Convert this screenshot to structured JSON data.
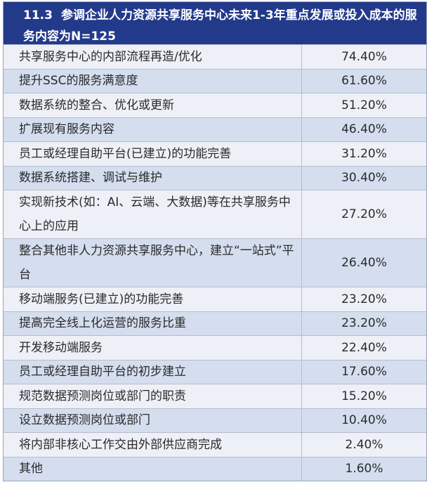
{
  "title": {
    "number": "11.3",
    "text": "参调企业人力资源共享服务中心未来1-3年重点发展或投入成本的服务内容为N=125"
  },
  "colors": {
    "header": "#233a8b",
    "row_light": "#eef0f8",
    "row_dark": "#d4deef"
  },
  "rows": [
    {
      "label": "共享服务中心的内部流程再造/优化",
      "value": "74.40%"
    },
    {
      "label": "提升SSC的服务满意度",
      "value": "61.60%"
    },
    {
      "label": "数据系统的整合、优化或更新",
      "value": "51.20%"
    },
    {
      "label": "扩展现有服务内容",
      "value": "46.40%"
    },
    {
      "label": "员工或经理自助平台(已建立)的功能完善",
      "value": "31.20%"
    },
    {
      "label": "数据系统搭建、调试与维护",
      "value": "30.40%"
    },
    {
      "label": "实现新技术(如：AI、云端、大数据)等在共享服务中心上的应用",
      "value": "27.20%"
    },
    {
      "label": "整合其他非人力资源共享服务中心，建立“一站式”平台",
      "value": "26.40%"
    },
    {
      "label": "移动端服务(已建立)的功能完善",
      "value": "23.20%"
    },
    {
      "label": "提高完全线上化运营的服务比重",
      "value": "23.20%"
    },
    {
      "label": "开发移动端服务",
      "value": "22.40%"
    },
    {
      "label": "员工或经理自助平台的初步建立",
      "value": "17.60%"
    },
    {
      "label": "规范数据预测岗位或部门的职责",
      "value": "15.20%"
    },
    {
      "label": "设立数据预测岗位或部门",
      "value": "10.40%"
    },
    {
      "label": "将内部非核心工作交由外部供应商完成",
      "value": "2.40%"
    },
    {
      "label": "其他",
      "value": "1.60%"
    }
  ]
}
